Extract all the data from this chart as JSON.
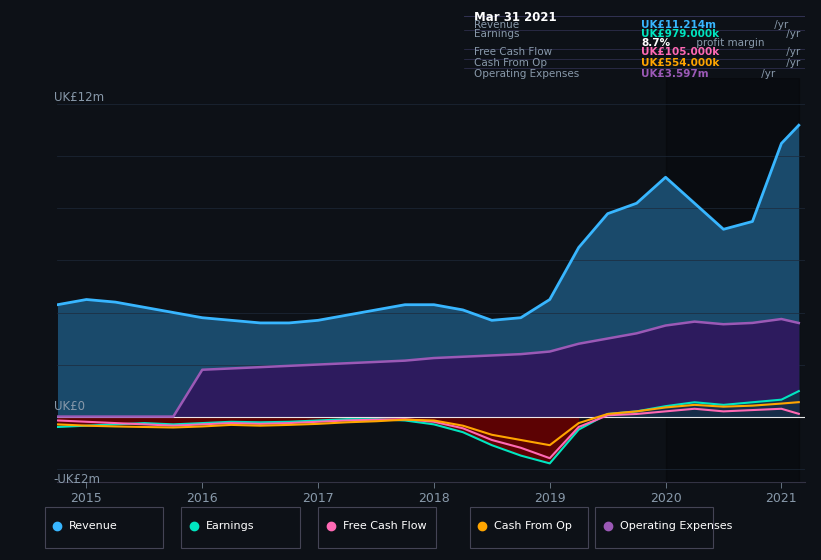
{
  "bg_color": "#0d1117",
  "plot_bg_color": "#0d1117",
  "title_box": {
    "date": "Mar 31 2021",
    "rows": [
      {
        "label": "Revenue",
        "value": "UK£11.214m",
        "unit": " /yr",
        "color": "#38b6ff"
      },
      {
        "label": "Earnings",
        "value": "UK£979.000k",
        "unit": " /yr",
        "color": "#00e5c0"
      },
      {
        "label": "",
        "value": "8.7%",
        "unit": " profit margin",
        "color": "#ffffff"
      },
      {
        "label": "Free Cash Flow",
        "value": "UK£105.000k",
        "unit": " /yr",
        "color": "#ff69b4"
      },
      {
        "label": "Cash From Op",
        "value": "UK£554.000k",
        "unit": " /yr",
        "color": "#ffa500"
      },
      {
        "label": "Operating Expenses",
        "value": "UK£3.597m",
        "unit": " /yr",
        "color": "#9b59b6"
      }
    ]
  },
  "x_ticks": [
    2015,
    2016,
    2017,
    2018,
    2019,
    2020,
    2021
  ],
  "ylim": [
    -2.5,
    13.0
  ],
  "legend": [
    {
      "label": "Revenue",
      "color": "#38b6ff",
      "marker_color": "#38b6ff"
    },
    {
      "label": "Earnings",
      "color": "#00e5c0",
      "marker_color": "#00e5c0"
    },
    {
      "label": "Free Cash Flow",
      "color": "#ff69b4",
      "marker_color": "#ff69b4"
    },
    {
      "label": "Cash From Op",
      "color": "#ffa500",
      "marker_color": "#ffa500"
    },
    {
      "label": "Operating Expenses",
      "color": "#9b59b6",
      "marker_color": "#9b59b6"
    }
  ],
  "series": {
    "x": [
      2014.75,
      2015.0,
      2015.25,
      2015.5,
      2015.75,
      2016.0,
      2016.25,
      2016.5,
      2016.75,
      2017.0,
      2017.25,
      2017.5,
      2017.75,
      2018.0,
      2018.25,
      2018.5,
      2018.75,
      2019.0,
      2019.25,
      2019.5,
      2019.75,
      2020.0,
      2020.25,
      2020.5,
      2020.75,
      2021.0,
      2021.15
    ],
    "revenue": [
      4.3,
      4.5,
      4.4,
      4.2,
      4.0,
      3.8,
      3.7,
      3.6,
      3.6,
      3.7,
      3.9,
      4.1,
      4.3,
      4.3,
      4.1,
      3.7,
      3.8,
      4.5,
      6.5,
      7.8,
      8.2,
      9.2,
      8.2,
      7.2,
      7.5,
      10.5,
      11.2
    ],
    "operating_expenses": [
      0.0,
      0.0,
      0.0,
      0.0,
      0.0,
      1.8,
      1.85,
      1.9,
      1.95,
      2.0,
      2.05,
      2.1,
      2.15,
      2.25,
      2.3,
      2.35,
      2.4,
      2.5,
      2.8,
      3.0,
      3.2,
      3.5,
      3.65,
      3.55,
      3.6,
      3.75,
      3.597
    ],
    "earnings": [
      -0.4,
      -0.35,
      -0.3,
      -0.25,
      -0.3,
      -0.25,
      -0.2,
      -0.22,
      -0.2,
      -0.15,
      -0.1,
      -0.1,
      -0.15,
      -0.3,
      -0.6,
      -1.1,
      -1.5,
      -1.8,
      -0.5,
      0.1,
      0.2,
      0.4,
      0.55,
      0.45,
      0.55,
      0.65,
      0.979
    ],
    "free_cash_flow": [
      -0.15,
      -0.2,
      -0.25,
      -0.3,
      -0.35,
      -0.3,
      -0.25,
      -0.28,
      -0.25,
      -0.2,
      -0.15,
      -0.12,
      -0.1,
      -0.2,
      -0.45,
      -0.9,
      -1.2,
      -1.6,
      -0.4,
      0.05,
      0.1,
      0.2,
      0.3,
      0.2,
      0.25,
      0.3,
      0.105
    ],
    "cash_from_op": [
      -0.3,
      -0.35,
      -0.38,
      -0.4,
      -0.42,
      -0.38,
      -0.32,
      -0.35,
      -0.32,
      -0.28,
      -0.22,
      -0.18,
      -0.12,
      -0.15,
      -0.35,
      -0.7,
      -0.9,
      -1.1,
      -0.25,
      0.1,
      0.2,
      0.35,
      0.45,
      0.38,
      0.42,
      0.5,
      0.554
    ]
  },
  "grid_color": "#1e2a3a",
  "line_colors": {
    "revenue": "#38b6ff",
    "earnings": "#00e5c0",
    "free_cash_flow": "#ff69b4",
    "cash_from_op": "#ffa500",
    "operating_expenses": "#9b59b6"
  },
  "fill_colors": {
    "revenue_pos": "#1a4a6b",
    "opex_pos": "#2d1b5e",
    "earnings_neg": "#6b0000",
    "earnings_pos": "#003d33"
  }
}
